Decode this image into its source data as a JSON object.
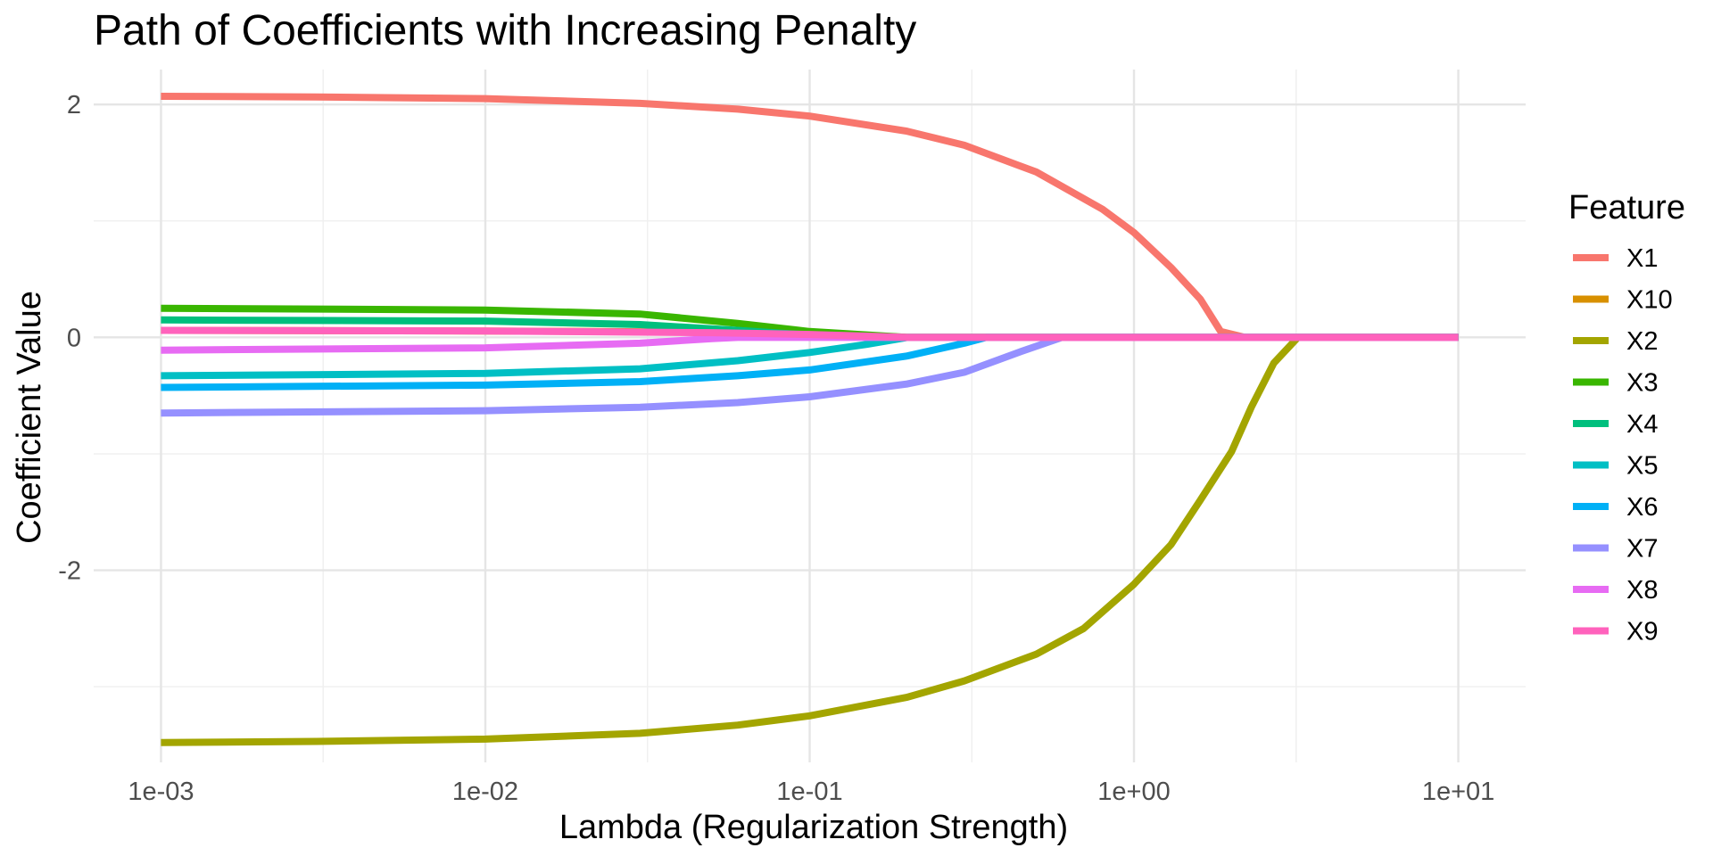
{
  "chart_data": {
    "type": "line",
    "title": "Path of Coefficients with Increasing Penalty",
    "xlabel": "Lambda (Regularization Strength)",
    "ylabel": "Coefficient Value",
    "x_scale": "log10",
    "xlim": [
      0.001,
      10
    ],
    "ylim": [
      -3.65,
      2.3
    ],
    "x_ticks": [
      0.001,
      0.01,
      0.1,
      1,
      10
    ],
    "x_tick_labels": [
      "1e-03",
      "1e-02",
      "1e-01",
      "1e+00",
      "1e+01"
    ],
    "y_ticks": [
      -2,
      0,
      2
    ],
    "y_tick_labels": [
      "-2",
      "0",
      "2"
    ],
    "grid": true,
    "legend": {
      "title": "Feature",
      "placement": "right",
      "entries": [
        "X1",
        "X10",
        "X2",
        "X3",
        "X4",
        "X5",
        "X6",
        "X7",
        "X8",
        "X9"
      ]
    },
    "series": [
      {
        "name": "X1",
        "color": "#F8766D",
        "points": [
          [
            0.001,
            2.07
          ],
          [
            0.003,
            2.065
          ],
          [
            0.01,
            2.05
          ],
          [
            0.03,
            2.01
          ],
          [
            0.06,
            1.96
          ],
          [
            0.1,
            1.9
          ],
          [
            0.2,
            1.77
          ],
          [
            0.3,
            1.65
          ],
          [
            0.5,
            1.42
          ],
          [
            0.8,
            1.1
          ],
          [
            1.0,
            0.9
          ],
          [
            1.3,
            0.6
          ],
          [
            1.6,
            0.33
          ],
          [
            1.85,
            0.05
          ],
          [
            2.2,
            0
          ],
          [
            10,
            0
          ]
        ]
      },
      {
        "name": "X10",
        "color": "#D89000",
        "points": [
          [
            0.001,
            0.06
          ],
          [
            0.01,
            0.055
          ],
          [
            0.05,
            0.045
          ],
          [
            0.1,
            0.03
          ],
          [
            0.2,
            0
          ],
          [
            10,
            0
          ]
        ]
      },
      {
        "name": "X2",
        "color": "#A3A500",
        "points": [
          [
            0.001,
            -3.48
          ],
          [
            0.003,
            -3.47
          ],
          [
            0.01,
            -3.45
          ],
          [
            0.03,
            -3.4
          ],
          [
            0.06,
            -3.33
          ],
          [
            0.1,
            -3.25
          ],
          [
            0.2,
            -3.09
          ],
          [
            0.3,
            -2.95
          ],
          [
            0.5,
            -2.72
          ],
          [
            0.7,
            -2.5
          ],
          [
            1.0,
            -2.12
          ],
          [
            1.3,
            -1.78
          ],
          [
            1.6,
            -1.4
          ],
          [
            2.0,
            -0.98
          ],
          [
            2.3,
            -0.6
          ],
          [
            2.7,
            -0.22
          ],
          [
            3.2,
            0
          ],
          [
            10,
            0
          ]
        ]
      },
      {
        "name": "X3",
        "color": "#39B600",
        "points": [
          [
            0.001,
            0.25
          ],
          [
            0.01,
            0.235
          ],
          [
            0.03,
            0.2
          ],
          [
            0.06,
            0.12
          ],
          [
            0.1,
            0.05
          ],
          [
            0.2,
            0
          ],
          [
            10,
            0
          ]
        ]
      },
      {
        "name": "X4",
        "color": "#00BF7D",
        "points": [
          [
            0.001,
            0.15
          ],
          [
            0.01,
            0.14
          ],
          [
            0.03,
            0.11
          ],
          [
            0.06,
            0.06
          ],
          [
            0.1,
            0.02
          ],
          [
            0.15,
            0
          ],
          [
            10,
            0
          ]
        ]
      },
      {
        "name": "X5",
        "color": "#00BFC4",
        "points": [
          [
            0.001,
            -0.33
          ],
          [
            0.01,
            -0.31
          ],
          [
            0.03,
            -0.27
          ],
          [
            0.06,
            -0.2
          ],
          [
            0.1,
            -0.13
          ],
          [
            0.15,
            -0.06
          ],
          [
            0.2,
            0
          ],
          [
            10,
            0
          ]
        ]
      },
      {
        "name": "X6",
        "color": "#00B0F6",
        "points": [
          [
            0.001,
            -0.43
          ],
          [
            0.01,
            -0.41
          ],
          [
            0.03,
            -0.38
          ],
          [
            0.06,
            -0.33
          ],
          [
            0.1,
            -0.28
          ],
          [
            0.2,
            -0.16
          ],
          [
            0.3,
            -0.05
          ],
          [
            0.35,
            0
          ],
          [
            10,
            0
          ]
        ]
      },
      {
        "name": "X7",
        "color": "#9590FF",
        "points": [
          [
            0.001,
            -0.65
          ],
          [
            0.01,
            -0.63
          ],
          [
            0.03,
            -0.6
          ],
          [
            0.06,
            -0.56
          ],
          [
            0.1,
            -0.51
          ],
          [
            0.2,
            -0.4
          ],
          [
            0.3,
            -0.3
          ],
          [
            0.45,
            -0.12
          ],
          [
            0.6,
            0
          ],
          [
            10,
            0
          ]
        ]
      },
      {
        "name": "X8",
        "color": "#E76BF3",
        "points": [
          [
            0.001,
            -0.11
          ],
          [
            0.01,
            -0.09
          ],
          [
            0.03,
            -0.05
          ],
          [
            0.05,
            -0.01
          ],
          [
            0.06,
            0
          ],
          [
            10,
            0
          ]
        ]
      },
      {
        "name": "X9",
        "color": "#FF62BC",
        "points": [
          [
            0.001,
            0.06
          ],
          [
            0.01,
            0.055
          ],
          [
            0.05,
            0.04
          ],
          [
            0.1,
            0.025
          ],
          [
            0.2,
            0
          ],
          [
            10,
            0
          ]
        ]
      }
    ]
  }
}
